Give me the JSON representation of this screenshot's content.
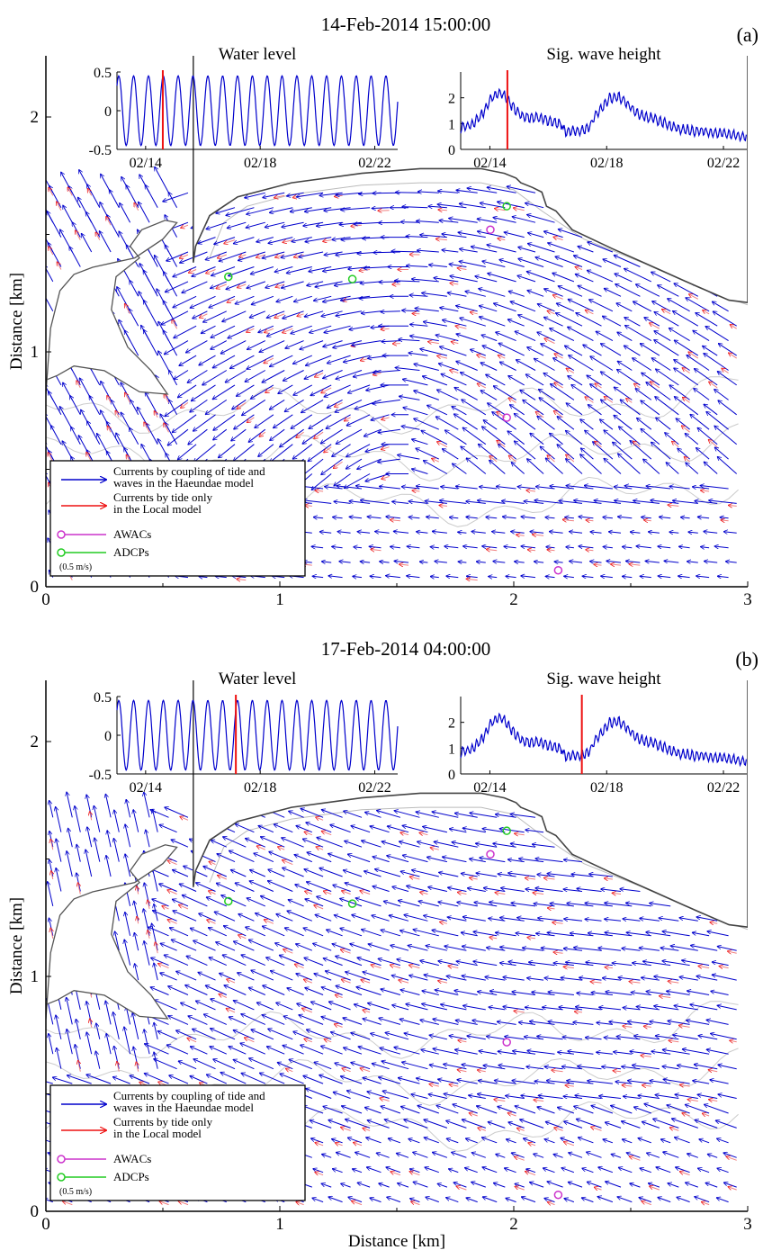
{
  "chart_data": [
    {
      "type": "quiver",
      "panel_label": "(a)",
      "title": "14-Feb-2014 15:00:00",
      "xlabel": "",
      "ylabel": "Distance [km]",
      "xlim": [
        0,
        3
      ],
      "ylim": [
        0,
        2
      ],
      "x_ticks": [
        "0",
        "1",
        "2",
        "3"
      ],
      "y_ticks": [
        "0",
        "1",
        "2"
      ],
      "legend": {
        "placement": "bottom-left",
        "entries": [
          {
            "label_line1": "Currents by coupling of tide and",
            "label_line2": "waves in the Haeundae model",
            "color": "#0000cc"
          },
          {
            "label_line1": "Currents by tide only",
            "label_line2": "in the Local model",
            "color": "#ee1111"
          },
          {
            "label_line1": "AWACs",
            "label_line2": "",
            "color": "#cc33cc"
          },
          {
            "label_line1": "ADCPs",
            "label_line2": "",
            "color": "#22cc22"
          }
        ],
        "scale_label": "(0.5 m/s)"
      },
      "stations": {
        "awacs": [
          [
            1.9,
            1.52
          ],
          [
            1.97,
            0.72
          ],
          [
            2.19,
            0.07
          ]
        ],
        "adcps": [
          [
            0.78,
            1.32
          ],
          [
            1.31,
            1.31
          ],
          [
            1.97,
            1.62
          ]
        ]
      },
      "insets": [
        {
          "title": "Water level",
          "type": "line",
          "ylim": [
            -0.5,
            0.5
          ],
          "y_ticks": [
            "0.5",
            "0",
            "-0.5"
          ],
          "x_ticks": [
            "02/14",
            "02/18",
            "02/22"
          ],
          "marker_day": 14.6,
          "color": "#0000cc"
        },
        {
          "title": "Sig. wave height",
          "type": "line",
          "ylim": [
            0,
            3
          ],
          "y_ticks": [
            "2",
            "1",
            "0"
          ],
          "x_ticks": [
            "02/14",
            "02/18",
            "02/22"
          ],
          "marker_day": 14.6,
          "color": "#0000cc"
        }
      ]
    },
    {
      "type": "quiver",
      "panel_label": "(b)",
      "title": "17-Feb-2014 04:00:00",
      "xlabel": "Distance [km]",
      "ylabel": "Distance [km]",
      "xlim": [
        0,
        3
      ],
      "ylim": [
        0,
        2
      ],
      "x_ticks": [
        "0",
        "1",
        "2",
        "3"
      ],
      "y_ticks": [
        "0",
        "1",
        "2"
      ],
      "legend": {
        "placement": "bottom-left",
        "entries": [
          {
            "label_line1": "Currents by coupling of tide and",
            "label_line2": "waves in the Haeundae model",
            "color": "#0000cc"
          },
          {
            "label_line1": "Currents by tide only",
            "label_line2": "in the Local model",
            "color": "#ee1111"
          },
          {
            "label_line1": "AWACs",
            "label_line2": "",
            "color": "#cc33cc"
          },
          {
            "label_line1": "ADCPs",
            "label_line2": "",
            "color": "#22cc22"
          }
        ],
        "scale_label": "(0.5 m/s)"
      },
      "stations": {
        "awacs": [
          [
            1.9,
            1.52
          ],
          [
            1.97,
            0.72
          ],
          [
            2.19,
            0.07
          ]
        ],
        "adcps": [
          [
            0.78,
            1.32
          ],
          [
            1.31,
            1.31
          ],
          [
            1.97,
            1.62
          ]
        ]
      },
      "insets": [
        {
          "title": "Water level",
          "type": "line",
          "ylim": [
            -0.5,
            0.5
          ],
          "y_ticks": [
            "0.5",
            "0",
            "-0.5"
          ],
          "x_ticks": [
            "02/14",
            "02/18",
            "02/22"
          ],
          "marker_day": 17.15,
          "color": "#0000cc"
        },
        {
          "title": "Sig. wave height",
          "type": "line",
          "ylim": [
            0,
            3
          ],
          "y_ticks": [
            "2",
            "1",
            "0"
          ],
          "x_ticks": [
            "02/14",
            "02/18",
            "02/22"
          ],
          "marker_day": 17.15,
          "color": "#0000cc"
        }
      ]
    }
  ]
}
